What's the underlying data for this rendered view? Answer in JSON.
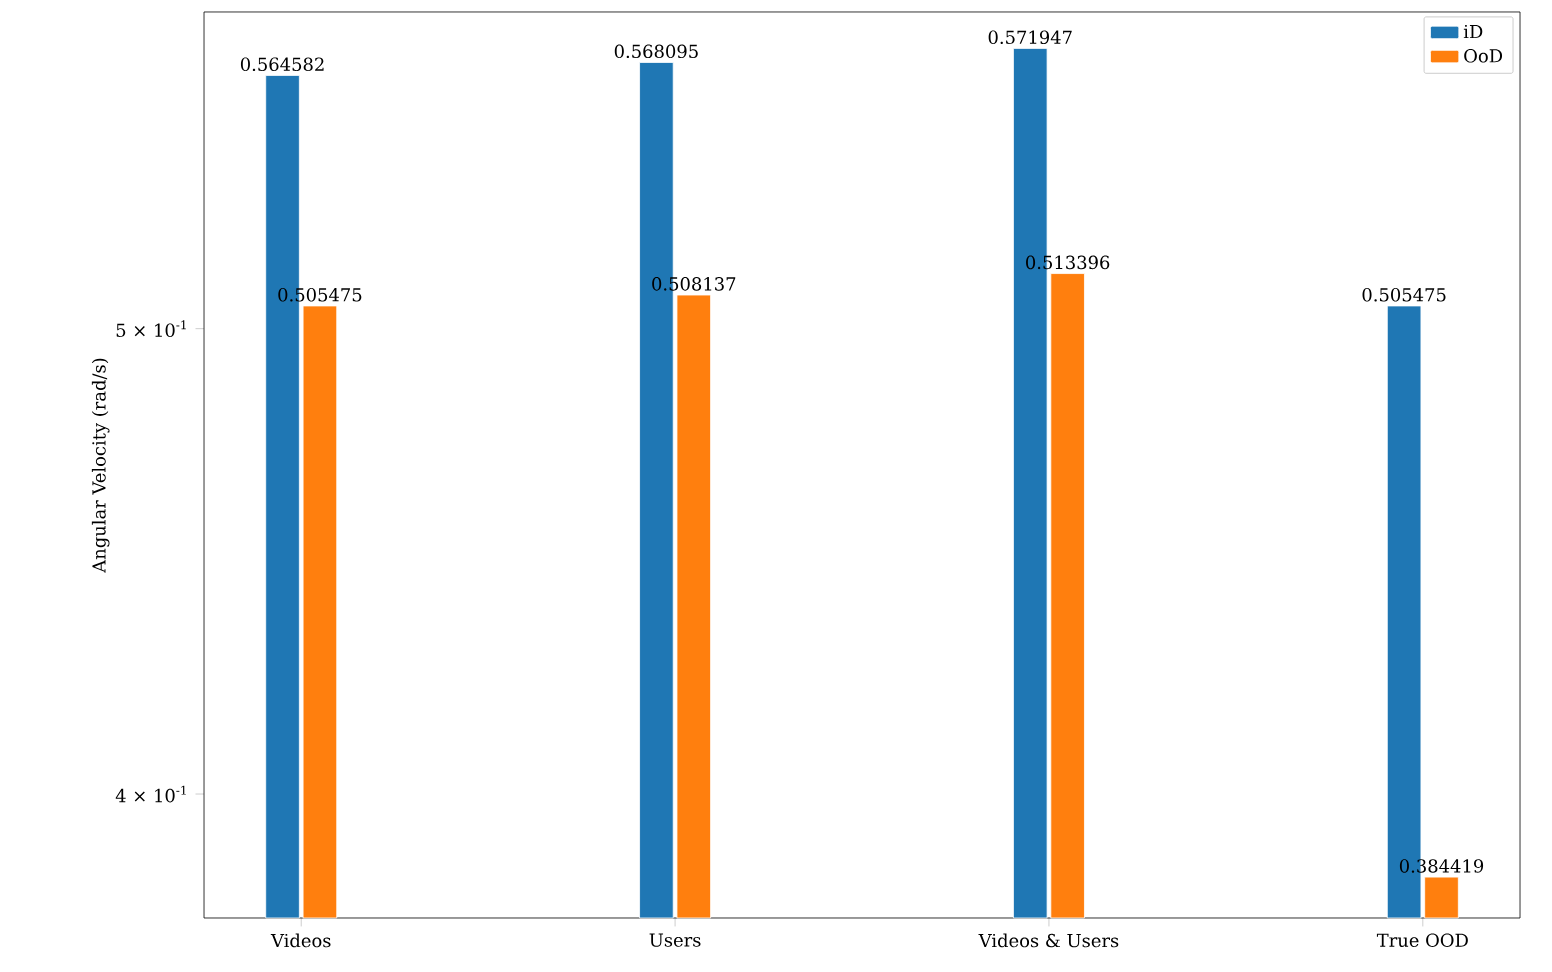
{
  "chart_data": {
    "type": "bar",
    "ylabel": "Angular Velocity (rad/s)",
    "categories": [
      "Videos",
      "Users",
      "Videos & Users",
      "True OOD"
    ],
    "series": [
      {
        "name": "iD",
        "color": "#1f77b4",
        "values": [
          0.564582,
          0.568095,
          0.571947,
          0.505475
        ]
      },
      {
        "name": "OoD",
        "color": "#ff7f0e",
        "values": [
          0.505475,
          0.508137,
          0.513396,
          0.384419
        ]
      }
    ],
    "log": true,
    "ylim": [
      0.377,
      0.582
    ],
    "yticks": [
      {
        "value": 0.4,
        "label": "4 × 10$^{-1}$"
      },
      {
        "value": 0.5,
        "label": "5 × 10$^{-1}$"
      }
    ],
    "data_labels": true,
    "legend": "top right",
    "grid": false
  }
}
